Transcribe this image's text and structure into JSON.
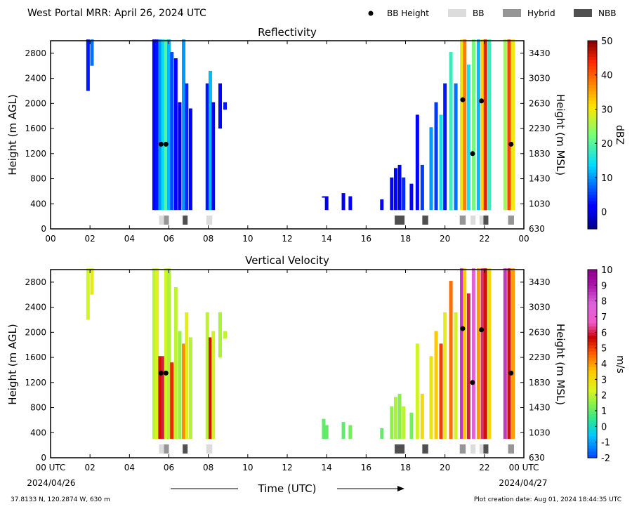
{
  "header": {
    "title": "West Portal MRR:  April 26, 2024 UTC",
    "legend": [
      {
        "label": "BB Height",
        "kind": "dot",
        "color": "#000000"
      },
      {
        "label": "BB",
        "kind": "swatch",
        "color": "#dcdcdc"
      },
      {
        "label": "Hybrid",
        "kind": "swatch",
        "color": "#969696"
      },
      {
        "label": "NBB",
        "kind": "swatch",
        "color": "#505050"
      }
    ]
  },
  "footer": {
    "location": "37.8133 N, 120.2874 W, 630 m",
    "creation": "Plot creation date: Aug 01, 2024 18:44:35 UTC",
    "xlabel": "Time (UTC)",
    "start_date": "2024/04/26",
    "end_date": "2024/04/27"
  },
  "chart_data": [
    {
      "type": "heatmap",
      "title": "Reflectivity",
      "ylabel": "Height (m AGL)",
      "ylabel_right": "Height (m MSL)",
      "xlim": [
        0,
        24
      ],
      "ylim": [
        0,
        3000
      ],
      "x_ticks": [
        "00",
        "02",
        "04",
        "06",
        "08",
        "10",
        "12",
        "14",
        "16",
        "18",
        "20",
        "22",
        "00"
      ],
      "y_ticks": [
        0,
        400,
        800,
        1200,
        1600,
        2000,
        2400,
        2800
      ],
      "y_ticks_right": [
        "630",
        "1030",
        "1430",
        "1830",
        "2230",
        "2630",
        "3030",
        "3430"
      ],
      "colorbar": {
        "label": "dBZ",
        "min": -5,
        "max": 50,
        "ticks": [
          0,
          10,
          20,
          30,
          40,
          50
        ]
      },
      "bb_height_points": [
        {
          "t": 5.6,
          "h": 1350
        },
        {
          "t": 5.85,
          "h": 1350
        },
        {
          "t": 20.9,
          "h": 2060
        },
        {
          "t": 21.4,
          "h": 1200
        },
        {
          "t": 21.85,
          "h": 2040
        },
        {
          "t": 23.35,
          "h": 1350
        }
      ],
      "bb_category_markers": [
        {
          "t0": 5.5,
          "t1": 5.75,
          "type": "BB"
        },
        {
          "t0": 5.75,
          "t1": 6.0,
          "type": "Hybrid"
        },
        {
          "t0": 6.7,
          "t1": 6.95,
          "type": "NBB"
        },
        {
          "t0": 7.9,
          "t1": 8.2,
          "type": "BB"
        },
        {
          "t0": 17.45,
          "t1": 17.95,
          "type": "NBB"
        },
        {
          "t0": 18.85,
          "t1": 19.15,
          "type": "NBB"
        },
        {
          "t0": 20.75,
          "t1": 21.05,
          "type": "Hybrid"
        },
        {
          "t0": 21.3,
          "t1": 21.55,
          "type": "BB"
        },
        {
          "t0": 21.75,
          "t1": 21.95,
          "type": "BB"
        },
        {
          "t0": 21.95,
          "t1": 22.2,
          "type": "NBB"
        },
        {
          "t0": 23.2,
          "t1": 23.5,
          "type": "Hybrid"
        }
      ],
      "echo_columns": [
        {
          "t": 1.9,
          "h0": 2200,
          "h1": 3000,
          "v": 3
        },
        {
          "t": 2.1,
          "h0": 2600,
          "h1": 3000,
          "v": 8
        },
        {
          "t": 5.25,
          "h0": 300,
          "h1": 3000,
          "v": 1
        },
        {
          "t": 5.4,
          "h0": 300,
          "h1": 3000,
          "v": 3
        },
        {
          "t": 5.55,
          "h0": 300,
          "h1": 3000,
          "v": 10
        },
        {
          "t": 5.7,
          "h0": 300,
          "h1": 3000,
          "v": 14
        },
        {
          "t": 5.85,
          "h0": 300,
          "h1": 3000,
          "v": 20
        },
        {
          "t": 6.0,
          "h0": 300,
          "h1": 3000,
          "v": 12
        },
        {
          "t": 6.15,
          "h0": 300,
          "h1": 2800,
          "v": 6
        },
        {
          "t": 6.35,
          "h0": 300,
          "h1": 2700,
          "v": 2
        },
        {
          "t": 6.55,
          "h0": 300,
          "h1": 2000,
          "v": 0
        },
        {
          "t": 6.75,
          "h0": 300,
          "h1": 3000,
          "v": 10
        },
        {
          "t": 6.9,
          "h0": 300,
          "h1": 2300,
          "v": 4
        },
        {
          "t": 7.1,
          "h0": 300,
          "h1": 1900,
          "v": 1
        },
        {
          "t": 7.95,
          "h0": 300,
          "h1": 2300,
          "v": 3
        },
        {
          "t": 8.1,
          "h0": 300,
          "h1": 2500,
          "v": 12
        },
        {
          "t": 8.25,
          "h0": 300,
          "h1": 2000,
          "v": 2
        },
        {
          "t": 8.6,
          "h0": 1600,
          "h1": 2300,
          "v": 1
        },
        {
          "t": 8.85,
          "h0": 1900,
          "h1": 2000,
          "v": 3
        },
        {
          "t": 13.85,
          "h0": 500,
          "h1": 500,
          "v": 2
        },
        {
          "t": 14.0,
          "h0": 300,
          "h1": 500,
          "v": 0
        },
        {
          "t": 14.85,
          "h0": 300,
          "h1": 550,
          "v": 0
        },
        {
          "t": 15.2,
          "h0": 300,
          "h1": 500,
          "v": 1
        },
        {
          "t": 16.8,
          "h0": 300,
          "h1": 450,
          "v": 2
        },
        {
          "t": 17.3,
          "h0": 300,
          "h1": 800,
          "v": 1
        },
        {
          "t": 17.5,
          "h0": 300,
          "h1": 950,
          "v": 2
        },
        {
          "t": 17.7,
          "h0": 300,
          "h1": 1000,
          "v": 1
        },
        {
          "t": 17.9,
          "h0": 300,
          "h1": 800,
          "v": 4
        },
        {
          "t": 18.3,
          "h0": 300,
          "h1": 700,
          "v": 2
        },
        {
          "t": 18.6,
          "h0": 300,
          "h1": 1800,
          "v": 1
        },
        {
          "t": 18.85,
          "h0": 300,
          "h1": 1000,
          "v": 5
        },
        {
          "t": 19.3,
          "h0": 300,
          "h1": 1600,
          "v": 10
        },
        {
          "t": 19.55,
          "h0": 300,
          "h1": 2000,
          "v": 5
        },
        {
          "t": 19.8,
          "h0": 300,
          "h1": 1800,
          "v": 15
        },
        {
          "t": 20.0,
          "h0": 300,
          "h1": 2300,
          "v": 3
        },
        {
          "t": 20.3,
          "h0": 300,
          "h1": 2800,
          "v": 18
        },
        {
          "t": 20.55,
          "h0": 300,
          "h1": 2300,
          "v": 8
        },
        {
          "t": 20.85,
          "h0": 300,
          "h1": 3000,
          "v": 30
        },
        {
          "t": 21.0,
          "h0": 300,
          "h1": 3000,
          "v": 38
        },
        {
          "t": 21.2,
          "h0": 300,
          "h1": 2600,
          "v": 15
        },
        {
          "t": 21.45,
          "h0": 300,
          "h1": 3000,
          "v": 22
        },
        {
          "t": 21.7,
          "h0": 300,
          "h1": 3000,
          "v": 12
        },
        {
          "t": 21.9,
          "h0": 300,
          "h1": 3000,
          "v": 32
        },
        {
          "t": 22.05,
          "h0": 300,
          "h1": 3000,
          "v": 45
        },
        {
          "t": 22.25,
          "h0": 300,
          "h1": 3000,
          "v": 18
        },
        {
          "t": 23.05,
          "h0": 300,
          "h1": 3000,
          "v": 25
        },
        {
          "t": 23.25,
          "h0": 300,
          "h1": 3000,
          "v": 42
        },
        {
          "t": 23.45,
          "h0": 300,
          "h1": 3000,
          "v": 30
        }
      ]
    },
    {
      "type": "heatmap",
      "title": "Vertical Velocity",
      "ylabel": "Height (m AGL)",
      "ylabel_right": "Height (m MSL)",
      "xlim": [
        0,
        24
      ],
      "ylim": [
        0,
        3000
      ],
      "x_ticks": [
        "00 UTC",
        "02",
        "04",
        "06",
        "08",
        "10",
        "12",
        "14",
        "16",
        "18",
        "20",
        "22",
        "00 UTC"
      ],
      "y_ticks": [
        0,
        400,
        800,
        1200,
        1600,
        2000,
        2400,
        2800
      ],
      "y_ticks_right": [
        "630",
        "1030",
        "1430",
        "1830",
        "2230",
        "2630",
        "3030",
        "3430"
      ],
      "colorbar": {
        "label": "m/s",
        "min": -2,
        "max": 10,
        "ticks": [
          -2,
          -1,
          0,
          1,
          2,
          3,
          4,
          5,
          6,
          7,
          8,
          9,
          10
        ]
      },
      "bb_height_points": [
        {
          "t": 5.6,
          "h": 1350
        },
        {
          "t": 5.85,
          "h": 1350
        },
        {
          "t": 20.9,
          "h": 2060
        },
        {
          "t": 21.4,
          "h": 1200
        },
        {
          "t": 21.85,
          "h": 2040
        },
        {
          "t": 23.35,
          "h": 1350
        }
      ],
      "bb_category_markers": [
        {
          "t0": 5.5,
          "t1": 5.75,
          "type": "BB"
        },
        {
          "t0": 5.75,
          "t1": 6.0,
          "type": "Hybrid"
        },
        {
          "t0": 6.7,
          "t1": 6.95,
          "type": "NBB"
        },
        {
          "t0": 7.9,
          "t1": 8.2,
          "type": "BB"
        },
        {
          "t0": 17.45,
          "t1": 17.95,
          "type": "NBB"
        },
        {
          "t0": 18.85,
          "t1": 19.15,
          "type": "NBB"
        },
        {
          "t0": 20.75,
          "t1": 21.05,
          "type": "Hybrid"
        },
        {
          "t0": 21.3,
          "t1": 21.55,
          "type": "BB"
        },
        {
          "t0": 21.75,
          "t1": 21.95,
          "type": "BB"
        },
        {
          "t0": 21.95,
          "t1": 22.2,
          "type": "NBB"
        },
        {
          "t0": 23.2,
          "t1": 23.5,
          "type": "Hybrid"
        }
      ],
      "echo_columns": [
        {
          "t": 1.9,
          "h0": 2200,
          "h1": 3000,
          "v": 2.2
        },
        {
          "t": 2.1,
          "h0": 2600,
          "h1": 3000,
          "v": 2.6
        },
        {
          "t": 5.25,
          "h0": 300,
          "h1": 3000,
          "v": 2.0
        },
        {
          "t": 5.4,
          "h0": 300,
          "h1": 3000,
          "v": 2.4
        },
        {
          "t": 5.55,
          "h0": 300,
          "h1": 1600,
          "v": 5.5
        },
        {
          "t": 5.7,
          "h0": 300,
          "h1": 1600,
          "v": 6.0
        },
        {
          "t": 5.85,
          "h0": 300,
          "h1": 3000,
          "v": 2.2
        },
        {
          "t": 6.0,
          "h0": 300,
          "h1": 3000,
          "v": 1.8
        },
        {
          "t": 6.15,
          "h0": 300,
          "h1": 1500,
          "v": 5.2
        },
        {
          "t": 6.35,
          "h0": 300,
          "h1": 2700,
          "v": 2.0
        },
        {
          "t": 6.55,
          "h0": 300,
          "h1": 2000,
          "v": 1.6
        },
        {
          "t": 6.75,
          "h0": 300,
          "h1": 1800,
          "v": 4.2
        },
        {
          "t": 6.9,
          "h0": 300,
          "h1": 2300,
          "v": 2.5
        },
        {
          "t": 7.1,
          "h0": 300,
          "h1": 1900,
          "v": 1.9
        },
        {
          "t": 7.95,
          "h0": 300,
          "h1": 2300,
          "v": 2.0
        },
        {
          "t": 8.1,
          "h0": 300,
          "h1": 1900,
          "v": 5.5
        },
        {
          "t": 8.25,
          "h0": 300,
          "h1": 2000,
          "v": 2.2
        },
        {
          "t": 8.6,
          "h0": 1600,
          "h1": 2300,
          "v": 1.8
        },
        {
          "t": 8.85,
          "h0": 1900,
          "h1": 2000,
          "v": 2.0
        },
        {
          "t": 13.85,
          "h0": 300,
          "h1": 600,
          "v": 1.0
        },
        {
          "t": 14.0,
          "h0": 300,
          "h1": 500,
          "v": 1.0
        },
        {
          "t": 14.85,
          "h0": 300,
          "h1": 550,
          "v": 1.0
        },
        {
          "t": 15.2,
          "h0": 300,
          "h1": 500,
          "v": 1.2
        },
        {
          "t": 16.8,
          "h0": 300,
          "h1": 450,
          "v": 1.0
        },
        {
          "t": 17.3,
          "h0": 300,
          "h1": 800,
          "v": 1.5
        },
        {
          "t": 17.5,
          "h0": 300,
          "h1": 950,
          "v": 1.8
        },
        {
          "t": 17.7,
          "h0": 300,
          "h1": 1000,
          "v": 1.4
        },
        {
          "t": 17.9,
          "h0": 300,
          "h1": 800,
          "v": 2.0
        },
        {
          "t": 18.3,
          "h0": 300,
          "h1": 700,
          "v": 1.2
        },
        {
          "t": 18.6,
          "h0": 300,
          "h1": 1800,
          "v": 2.2
        },
        {
          "t": 18.85,
          "h0": 300,
          "h1": 1000,
          "v": 3.0
        },
        {
          "t": 19.3,
          "h0": 300,
          "h1": 1600,
          "v": 2.8
        },
        {
          "t": 19.55,
          "h0": 300,
          "h1": 2000,
          "v": 3.5
        },
        {
          "t": 19.8,
          "h0": 300,
          "h1": 1800,
          "v": 5.0
        },
        {
          "t": 20.0,
          "h0": 300,
          "h1": 2300,
          "v": 2.5
        },
        {
          "t": 20.3,
          "h0": 300,
          "h1": 2800,
          "v": 4.5
        },
        {
          "t": 20.55,
          "h0": 300,
          "h1": 2300,
          "v": 2.2
        },
        {
          "t": 20.85,
          "h0": 300,
          "h1": 3000,
          "v": 8.5
        },
        {
          "t": 21.0,
          "h0": 300,
          "h1": 3000,
          "v": 3.5
        },
        {
          "t": 21.2,
          "h0": 300,
          "h1": 2600,
          "v": 6.0
        },
        {
          "t": 21.45,
          "h0": 300,
          "h1": 3000,
          "v": 7.5
        },
        {
          "t": 21.7,
          "h0": 300,
          "h1": 3000,
          "v": 4.0
        },
        {
          "t": 21.9,
          "h0": 300,
          "h1": 3000,
          "v": 6.2
        },
        {
          "t": 22.05,
          "h0": 300,
          "h1": 3000,
          "v": 5.5
        },
        {
          "t": 22.25,
          "h0": 300,
          "h1": 3000,
          "v": 3.2
        },
        {
          "t": 23.05,
          "h0": 300,
          "h1": 3000,
          "v": 8.5
        },
        {
          "t": 23.25,
          "h0": 300,
          "h1": 3000,
          "v": 5.8
        },
        {
          "t": 23.45,
          "h0": 300,
          "h1": 3000,
          "v": 4.0
        }
      ]
    }
  ]
}
